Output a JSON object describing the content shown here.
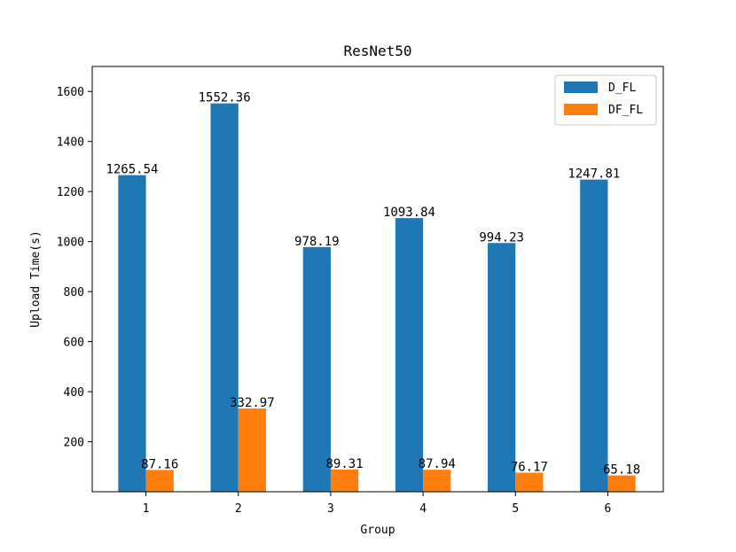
{
  "chart_data": {
    "type": "bar",
    "title": "ResNet50",
    "xlabel": "Group",
    "ylabel": "Upload Time(s)",
    "categories": [
      "1",
      "2",
      "3",
      "4",
      "5",
      "6"
    ],
    "series": [
      {
        "name": "D_FL",
        "color": "#1f77b4",
        "values": [
          1265.54,
          1552.36,
          978.19,
          1093.84,
          994.23,
          1247.81
        ],
        "labels": [
          "1265.54",
          "1552.36",
          "978.19",
          "1093.84",
          "994.23",
          "1247.81"
        ]
      },
      {
        "name": "DF_FL",
        "color": "#ff7f0e",
        "values": [
          87.16,
          332.97,
          89.31,
          87.94,
          76.17,
          65.18
        ],
        "labels": [
          "87.16",
          "332.97",
          "89.31",
          "87.94",
          "76.17",
          "65.18"
        ]
      }
    ],
    "ylim": [
      0,
      1700
    ],
    "yticks": [
      200,
      400,
      600,
      800,
      1000,
      1200,
      1400,
      1600
    ],
    "ytick_labels": [
      "200",
      "400",
      "600",
      "800",
      "1000",
      "1200",
      "1400",
      "1600"
    ],
    "legend_position": "top-right",
    "grid": false
  }
}
